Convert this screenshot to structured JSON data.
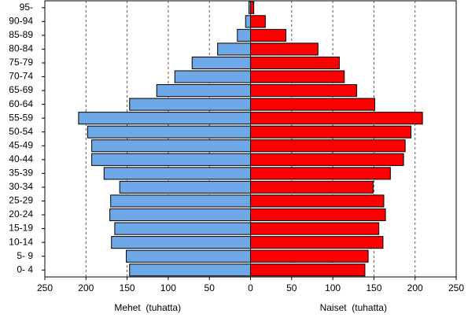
{
  "chart_data": {
    "type": "pyramid",
    "categories": [
      "0- 4",
      "5- 9",
      "10-14",
      "15-19",
      "20-24",
      "25-29",
      "30-34",
      "35-39",
      "40-44",
      "45-49",
      "50-54",
      "55-59",
      "60-64",
      "65-69",
      "70-74",
      "75-79",
      "80-84",
      "85-89",
      "90-94",
      "95-"
    ],
    "series": [
      {
        "name": "Mehet  (tuhatta)",
        "color": "#6fa8e6",
        "values": [
          -147,
          -151,
          -169,
          -165,
          -171,
          -170,
          -159,
          -178,
          -193,
          -193,
          -198,
          -209,
          -147,
          -114,
          -92,
          -71,
          -40,
          -16,
          -6,
          -2
        ]
      },
      {
        "name": "Naiset  (tuhatta)",
        "color": "#ff0000",
        "values": [
          139,
          143,
          161,
          156,
          164,
          162,
          149,
          170,
          186,
          188,
          195,
          209,
          151,
          129,
          114,
          108,
          82,
          43,
          18,
          4
        ]
      }
    ],
    "xlim": [
      -250,
      250
    ],
    "xticks": [
      {
        "value": -250,
        "label": "250"
      },
      {
        "value": -200,
        "label": "200"
      },
      {
        "value": -150,
        "label": "150"
      },
      {
        "value": -100,
        "label": "100"
      },
      {
        "value": -50,
        "label": "50"
      },
      0,
      50,
      100,
      150,
      200,
      250
    ],
    "grid": true
  }
}
